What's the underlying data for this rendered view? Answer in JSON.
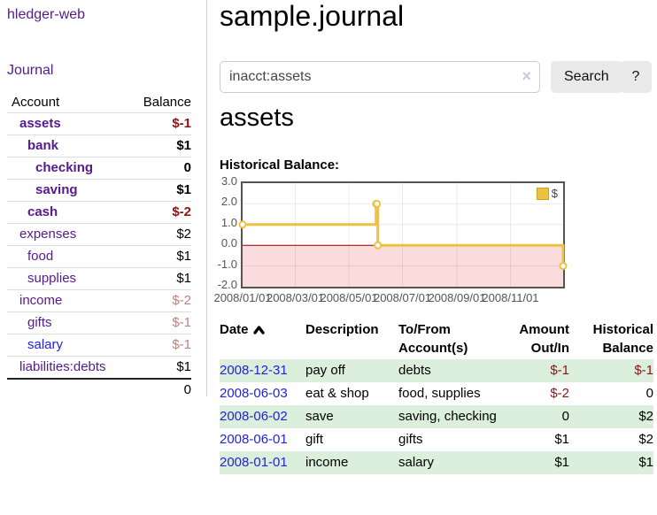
{
  "colors": {
    "link_purple": "#551a8b",
    "link_blue": "#2222dd",
    "negative_red": "#8b1414",
    "faded_red": "#c08080",
    "row_green": "#dceedc",
    "chart_yellow": "#edc240",
    "chart_negative_region": "#fbdcdc",
    "chart_zero_line": "#8b0000",
    "chart_axis_gray": "#545454"
  },
  "sidebar": {
    "app_title": "hledger-web",
    "journal_label": "Journal",
    "accounts_table": {
      "headers": {
        "account": "Account",
        "balance": "Balance"
      },
      "rows": [
        {
          "label": "assets",
          "depth": 1,
          "bold": true,
          "label_style": "purple",
          "balance": "$-1",
          "balance_style": "negative"
        },
        {
          "label": "bank",
          "depth": 2,
          "bold": true,
          "label_style": "purple",
          "balance": "$1",
          "balance_style": "normal"
        },
        {
          "label": "checking",
          "depth": 3,
          "bold": true,
          "label_style": "purple",
          "balance": "0",
          "balance_style": "normal"
        },
        {
          "label": "saving",
          "depth": 3,
          "bold": true,
          "label_style": "purple",
          "balance": "$1",
          "balance_style": "normal"
        },
        {
          "label": "cash",
          "depth": 2,
          "bold": true,
          "label_style": "purple",
          "balance": "$-2",
          "balance_style": "negative"
        },
        {
          "label": "expenses",
          "depth": 1,
          "bold": false,
          "label_style": "purple",
          "balance": "$2",
          "balance_style": "normal"
        },
        {
          "label": "food",
          "depth": 2,
          "bold": false,
          "label_style": "purple",
          "balance": "$1",
          "balance_style": "normal"
        },
        {
          "label": "supplies",
          "depth": 2,
          "bold": false,
          "label_style": "purple",
          "balance": "$1",
          "balance_style": "normal"
        },
        {
          "label": "income",
          "depth": 1,
          "bold": false,
          "label_style": "purple",
          "balance": "$-2",
          "balance_style": "faded"
        },
        {
          "label": "gifts",
          "depth": 2,
          "bold": false,
          "label_style": "purple",
          "balance": "$-1",
          "balance_style": "faded"
        },
        {
          "label": "salary",
          "depth": 2,
          "bold": false,
          "label_style": "blue",
          "balance": "$-1",
          "balance_style": "faded"
        },
        {
          "label": "liabilities:debts",
          "depth": 1,
          "bold": false,
          "label_style": "purple",
          "balance": "$1",
          "balance_style": "normal"
        }
      ],
      "total": "0"
    }
  },
  "header": {
    "title": "sample.journal"
  },
  "search": {
    "query": "inacct:assets",
    "clear_icon": "×",
    "button_label": "Search",
    "help_label": "?"
  },
  "account_page": {
    "heading": "assets"
  },
  "chart_data": {
    "type": "line",
    "subtype": "step",
    "title": "Historical Balance:",
    "series": [
      {
        "name": "$",
        "color": "#edc240",
        "points": [
          {
            "date": "2008-01-01",
            "value": 1
          },
          {
            "date": "2008-06-01",
            "value": 2
          },
          {
            "date": "2008-06-02",
            "value": 2
          },
          {
            "date": "2008-06-03",
            "value": 0
          },
          {
            "date": "2008-12-31",
            "value": -1
          }
        ]
      }
    ],
    "x_axis": {
      "start": "2008-01-01",
      "end": "2008-12-31",
      "tick_dates": [
        "2008-01-01",
        "2008-03-01",
        "2008-05-01",
        "2008-07-01",
        "2008-09-01",
        "2008-11-01"
      ],
      "tick_labels": [
        "2008/01/01",
        "2008/03/01",
        "2008/05/01",
        "2008/07/01",
        "2008/09/01",
        "2008/11/01"
      ]
    },
    "y_axis": {
      "min": -2.0,
      "max": 3.0,
      "tick_values": [
        3.0,
        2.0,
        1.0,
        0.0,
        -1.0,
        -2.0
      ],
      "tick_labels": [
        "3.0",
        "2.0",
        "1.0",
        "0.0",
        "-1.0",
        "-2.0"
      ]
    },
    "legend": {
      "label": "$",
      "position": "top-right",
      "swatch_color": "#edc240"
    },
    "grid": true,
    "negative_region_color": "#fbdcdc",
    "zero_line_color": "#8b0000"
  },
  "register": {
    "headers": {
      "date": "Date",
      "sort_order": "ascending",
      "description": "Description",
      "accounts": "To/From Account(s)",
      "amount": "Amount Out/In",
      "balance": "Historical Balance"
    },
    "rows": [
      {
        "date": "2008-12-31",
        "description": "pay off",
        "accounts": "debts",
        "amount": "$-1",
        "amount_style": "negative",
        "balance": "$-1",
        "balance_style": "negative"
      },
      {
        "date": "2008-06-03",
        "description": "eat & shop",
        "accounts": "food, supplies",
        "amount": "$-2",
        "amount_style": "negative",
        "balance": "0",
        "balance_style": "normal"
      },
      {
        "date": "2008-06-02",
        "description": "save",
        "accounts": "saving, checking",
        "amount": "0",
        "amount_style": "normal",
        "balance": "$2",
        "balance_style": "normal"
      },
      {
        "date": "2008-06-01",
        "description": "gift",
        "accounts": "gifts",
        "amount": "$1",
        "amount_style": "normal",
        "balance": "$2",
        "balance_style": "normal"
      },
      {
        "date": "2008-01-01",
        "description": "income",
        "accounts": "salary",
        "amount": "$1",
        "amount_style": "normal",
        "balance": "$1",
        "balance_style": "normal"
      }
    ]
  }
}
